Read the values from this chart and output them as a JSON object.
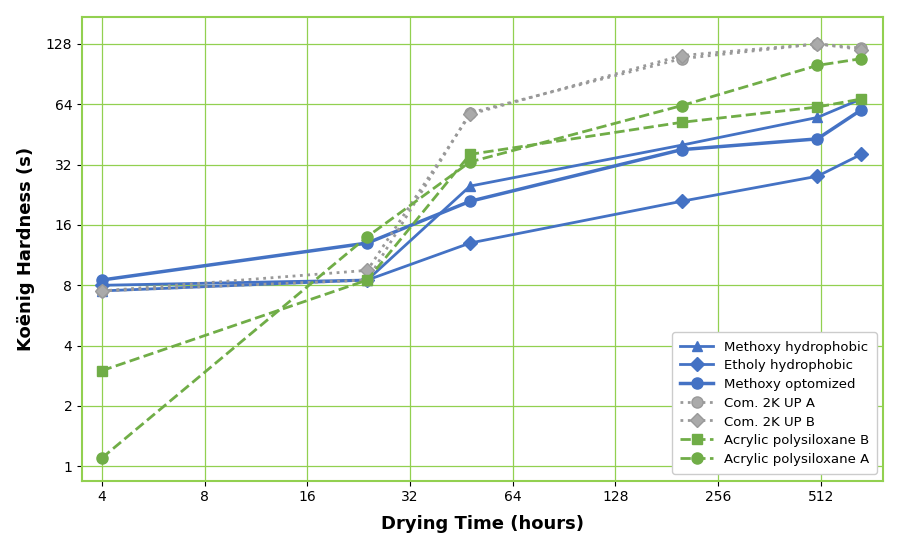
{
  "xlabel": "Drying Time (hours)",
  "ylabel": "Koënig Hardness (s)",
  "series": [
    {
      "label": "Methoxy hydrophobic",
      "x": [
        4,
        24,
        48,
        200,
        500,
        672
      ],
      "y": [
        7.5,
        8.5,
        25,
        40,
        55,
        68
      ],
      "color": "#4472C4",
      "linestyle": "-",
      "marker": "^",
      "markersize": 7,
      "linewidth": 2.0,
      "markerfacecolor": "#4472C4"
    },
    {
      "label": "Etholy hydrophobic",
      "x": [
        4,
        24,
        48,
        200,
        500,
        672
      ],
      "y": [
        8.0,
        8.5,
        13,
        21,
        28,
        36
      ],
      "color": "#4472C4",
      "linestyle": "-",
      "marker": "D",
      "markersize": 7,
      "linewidth": 2.0,
      "markerfacecolor": "#4472C4"
    },
    {
      "label": "Methoxy optomized",
      "x": [
        4,
        24,
        48,
        200,
        500,
        672
      ],
      "y": [
        8.5,
        13,
        21,
        38,
        43,
        60
      ],
      "color": "#4472C4",
      "linestyle": "-",
      "marker": "o",
      "markersize": 8,
      "linewidth": 2.5,
      "markerfacecolor": "#4472C4"
    },
    {
      "label": "Com. 2K UP A",
      "x": [
        4,
        24,
        48,
        200,
        500,
        672
      ],
      "y": [
        7.5,
        8.5,
        58,
        108,
        128,
        122
      ],
      "color": "#999999",
      "linestyle": ":",
      "marker": "o",
      "markersize": 8,
      "linewidth": 2.0,
      "markerfacecolor": "#aaaaaa"
    },
    {
      "label": "Com. 2K UP B",
      "x": [
        4,
        24,
        48,
        200,
        500,
        672
      ],
      "y": [
        7.5,
        9.5,
        57,
        112,
        128,
        120
      ],
      "color": "#999999",
      "linestyle": ":",
      "marker": "D",
      "markersize": 7,
      "linewidth": 2.0,
      "markerfacecolor": "#aaaaaa"
    },
    {
      "label": "Acrylic polysiloxane B",
      "x": [
        4,
        24,
        48,
        200,
        500,
        672
      ],
      "y": [
        3.0,
        8.5,
        36,
        52,
        62,
        68
      ],
      "color": "#70AD47",
      "linestyle": "--",
      "marker": "s",
      "markersize": 7,
      "linewidth": 2.0,
      "markerfacecolor": "#70AD47"
    },
    {
      "label": "Acrylic polysiloxane A",
      "x": [
        4,
        24,
        48,
        200,
        500,
        672
      ],
      "y": [
        1.1,
        14,
        33,
        63,
        100,
        108
      ],
      "color": "#70AD47",
      "linestyle": "--",
      "marker": "o",
      "markersize": 8,
      "linewidth": 2.0,
      "markerfacecolor": "#70AD47"
    }
  ],
  "xticks": [
    4,
    8,
    16,
    32,
    64,
    128,
    256,
    512
  ],
  "xtick_labels": [
    "4",
    "8",
    "16",
    "32",
    "64",
    "128",
    "256",
    "512"
  ],
  "yticks": [
    1,
    2,
    4,
    8,
    16,
    32,
    64,
    128
  ],
  "ytick_labels": [
    "1",
    "2",
    "4",
    "8",
    "16",
    "32",
    "64",
    "128"
  ],
  "xlim": [
    3.5,
    780
  ],
  "ylim": [
    0.85,
    175
  ],
  "grid_color": "#92D050",
  "background_color": "#ffffff"
}
